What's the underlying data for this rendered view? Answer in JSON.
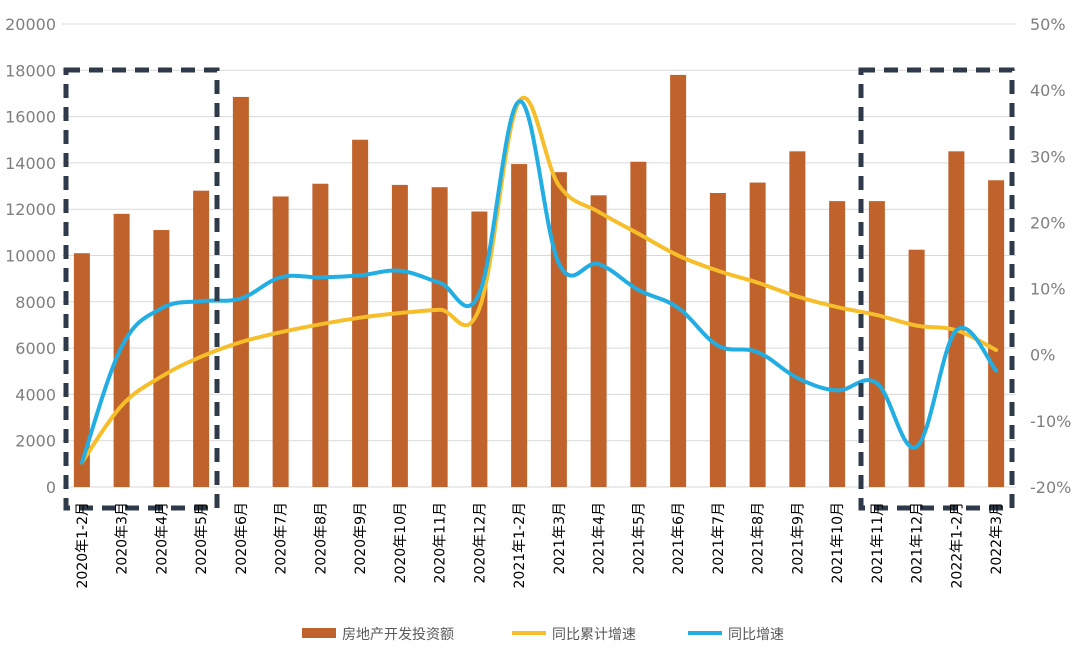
{
  "chart_data": {
    "type": "bar+line",
    "categories": [
      "2020年1-2月",
      "2020年3月",
      "2020年4月",
      "2020年5月",
      "2020年6月",
      "2020年7月",
      "2020年8月",
      "2020年9月",
      "2020年10月",
      "2020年11月",
      "2020年12月",
      "2021年1-2月",
      "2021年3月",
      "2021年4月",
      "2021年5月",
      "2021年6月",
      "2021年7月",
      "2021年8月",
      "2021年9月",
      "2021年10月",
      "2021年11月",
      "2021年12月",
      "2022年1-2月",
      "2022年3月"
    ],
    "series": [
      {
        "name": "房地产开发投资额",
        "type": "bar",
        "axis": "left",
        "color": "#C0622B",
        "values": [
          10100,
          11800,
          11100,
          12800,
          16850,
          12550,
          13100,
          15000,
          13050,
          12950,
          11900,
          13950,
          13600,
          12600,
          14050,
          17800,
          12700,
          13150,
          14500,
          12350,
          12350,
          10250,
          14500,
          13250
        ]
      },
      {
        "name": "同比累计增速",
        "type": "line",
        "axis": "right",
        "color": "#F5BE2A",
        "values": [
          -16.3,
          -7.7,
          -3.3,
          -0.3,
          1.9,
          3.4,
          4.6,
          5.6,
          6.3,
          6.8,
          7.0,
          38.3,
          25.6,
          21.6,
          18.3,
          15.0,
          12.7,
          10.9,
          8.8,
          7.2,
          6.0,
          4.4,
          3.7,
          0.7
        ]
      },
      {
        "name": "同比增速",
        "type": "line",
        "axis": "right",
        "color": "#22AEE3",
        "values": [
          -16.3,
          1.2,
          7.0,
          8.1,
          8.5,
          11.7,
          11.7,
          12.0,
          12.7,
          10.9,
          9.3,
          38.3,
          13.8,
          13.7,
          9.8,
          7.1,
          1.4,
          0.4,
          -3.5,
          -5.4,
          -4.3,
          -13.9,
          3.7,
          -2.4
        ]
      }
    ],
    "y_left": {
      "min": 0,
      "max": 20000,
      "ticks": [
        "0",
        "2000",
        "4000",
        "6000",
        "8000",
        "10000",
        "12000",
        "14000",
        "16000",
        "18000",
        "20000"
      ]
    },
    "y_right": {
      "min": -20,
      "max": 50,
      "ticks": [
        "-20%",
        "-10%",
        "0%",
        "10%",
        "20%",
        "30%",
        "40%",
        "50%"
      ]
    },
    "grid": true,
    "legend_position": "bottom",
    "highlight_boxes": [
      {
        "from_index": 0,
        "to_index": 3,
        "color": "#2E3A4A",
        "style": "dashed"
      },
      {
        "from_index": 20,
        "to_index": 23,
        "color": "#2E3A4A",
        "style": "dashed"
      }
    ]
  }
}
